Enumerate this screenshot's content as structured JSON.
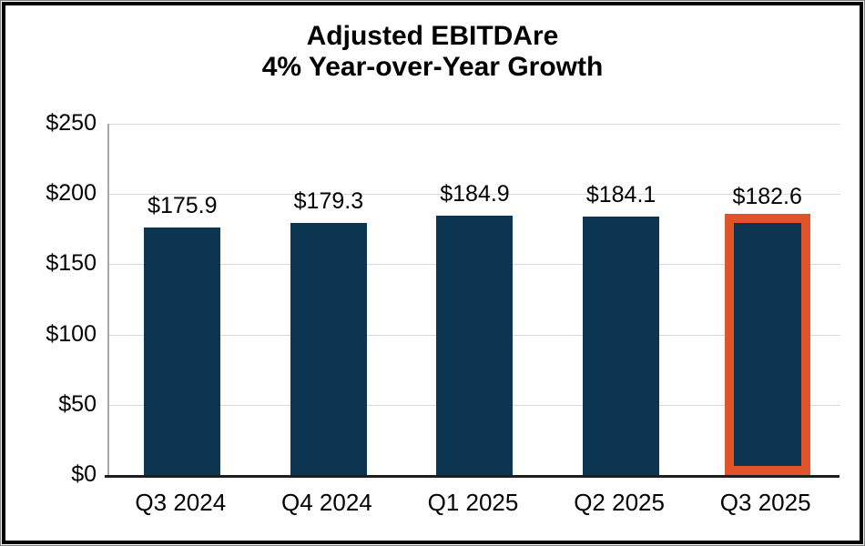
{
  "chart_data": {
    "type": "bar",
    "title": "Adjusted EBITDAre",
    "subtitle": "4% Year-over-Year Growth",
    "categories": [
      "Q3 2024",
      "Q4 2024",
      "Q1 2025",
      "Q2 2025",
      "Q3 2025"
    ],
    "values": [
      175.9,
      179.3,
      184.9,
      184.1,
      182.6
    ],
    "value_labels": [
      "$175.9",
      "$179.3",
      "$184.9",
      "$184.1",
      "$182.6"
    ],
    "y_ticks": [
      "$250",
      "$200",
      "$150",
      "$100",
      "$50",
      "$0"
    ],
    "ylim": [
      0,
      250
    ],
    "xlabel": "",
    "ylabel": "",
    "grid": "horizontal",
    "legend": "none",
    "highlighted_index": 4,
    "bar_color": "#0C3551",
    "highlight_outline_color": "#E1532B",
    "gridline_color": "#D9D9D9",
    "axis_line_color": "#1F1F1F"
  }
}
